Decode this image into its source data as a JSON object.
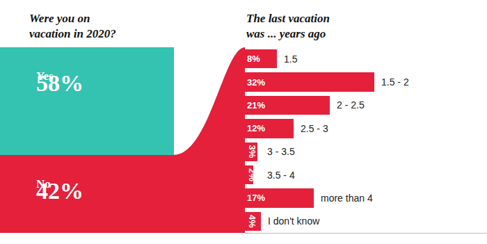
{
  "chart_data": [
    {
      "type": "bar",
      "title": "Were you on vacation in 2020?",
      "categories": [
        "Yes",
        "No"
      ],
      "values": [
        58,
        42
      ],
      "value_labels": [
        "58%",
        "42%"
      ],
      "colors": [
        "#33c3b0",
        "#e4203b"
      ],
      "stacked": true,
      "data_labels": true,
      "tick_labels": false,
      "ylim": [
        0,
        100
      ],
      "yticks": []
    },
    {
      "type": "bar",
      "orientation": "horizontal",
      "title": "The last vacation was ... years ago",
      "categories": [
        "1.5",
        "1.5 - 2",
        "2 - 2.5",
        "2.5 - 3",
        "3 - 3.5",
        "3.5 - 4",
        "more than 4",
        "I don't know"
      ],
      "values": [
        8,
        32,
        21,
        12,
        3,
        2,
        17,
        4
      ],
      "value_labels": [
        "8%",
        "32%",
        "21%",
        "12%",
        "3%",
        "2%",
        "17%",
        "4%"
      ],
      "color": "#e4203b",
      "data_labels": true,
      "tick_labels": false,
      "xlim": [
        0,
        60
      ],
      "xticks": []
    }
  ]
}
